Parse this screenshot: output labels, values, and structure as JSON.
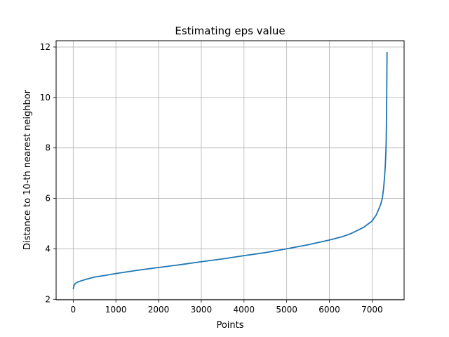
{
  "chart_data": {
    "type": "line",
    "title": "Estimating eps value",
    "xlabel": "Points",
    "ylabel": "Distance to 10-th nearest neighbor",
    "xlim": [
      -400,
      7750
    ],
    "ylim": [
      1.98,
      12.25
    ],
    "xticks": [
      0,
      1000,
      2000,
      3000,
      4000,
      5000,
      6000,
      7000
    ],
    "yticks": [
      2,
      4,
      6,
      8,
      10,
      12
    ],
    "grid": true,
    "line_color": "#1f77b4",
    "series": [
      {
        "x": [
          0,
          20,
          50,
          100,
          200,
          300,
          500,
          800,
          1000,
          1500,
          2000,
          2500,
          3000,
          3500,
          4000,
          4500,
          5000,
          5500,
          6000,
          6300,
          6500,
          6800,
          7000,
          7100,
          7150,
          7200,
          7240,
          7270,
          7290,
          7310,
          7320,
          7330,
          7335,
          7340,
          7345,
          7350
        ],
        "y": [
          2.4,
          2.55,
          2.63,
          2.68,
          2.74,
          2.79,
          2.88,
          2.96,
          3.02,
          3.15,
          3.26,
          3.37,
          3.49,
          3.6,
          3.73,
          3.85,
          4.0,
          4.16,
          4.35,
          4.48,
          4.6,
          4.85,
          5.1,
          5.35,
          5.55,
          5.75,
          6.0,
          6.4,
          6.8,
          7.3,
          7.7,
          8.2,
          8.8,
          9.6,
          10.6,
          11.8
        ]
      }
    ]
  }
}
